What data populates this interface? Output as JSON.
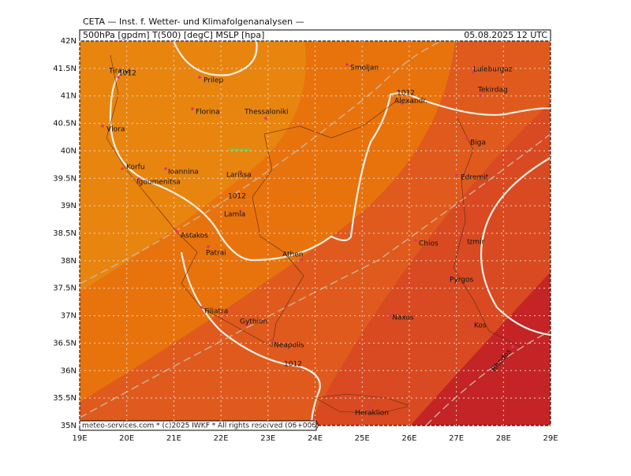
{
  "header": {
    "title": "CETA — Inst. f. Wetter- und Klimafolgenanalysen —",
    "params": "500hPa [gpdm] T(500) [degC] MSLP [hpa]",
    "date": "05.08.2025 12 UTC"
  },
  "axes": {
    "lat_ticks": [
      {
        "value": 42,
        "label": "42N"
      },
      {
        "value": 41.5,
        "label": "41.5N"
      },
      {
        "value": 41,
        "label": "41N"
      },
      {
        "value": 40.5,
        "label": "40.5N"
      },
      {
        "value": 40,
        "label": "40N"
      },
      {
        "value": 39.5,
        "label": "39.5N"
      },
      {
        "value": 39,
        "label": "39N"
      },
      {
        "value": 38.5,
        "label": "38.5N"
      },
      {
        "value": 38,
        "label": "38N"
      },
      {
        "value": 37.5,
        "label": "37.5N"
      },
      {
        "value": 37,
        "label": "37N"
      },
      {
        "value": 36.5,
        "label": "36.5N"
      },
      {
        "value": 36,
        "label": "36N"
      },
      {
        "value": 35.5,
        "label": "35.5N"
      },
      {
        "value": 35,
        "label": "35N"
      }
    ],
    "lon_ticks": [
      {
        "value": 19,
        "label": "19E"
      },
      {
        "value": 20,
        "label": "20E"
      },
      {
        "value": 21,
        "label": "21E"
      },
      {
        "value": 22,
        "label": "22E"
      },
      {
        "value": 23,
        "label": "23E"
      },
      {
        "value": 24,
        "label": "24E"
      },
      {
        "value": 25,
        "label": "25E"
      },
      {
        "value": 26,
        "label": "26E"
      },
      {
        "value": 27,
        "label": "27E"
      },
      {
        "value": 28,
        "label": "28E"
      },
      {
        "value": 29,
        "label": "29E"
      }
    ]
  },
  "cities": [
    "Tirana",
    "Prilep",
    "Smoljan",
    "Luleburgaz",
    "Tekirdag",
    "Alexandr.",
    "Thessaloniki",
    "Florina",
    "Vlora",
    "Biga",
    "Korfu",
    "Ioannina",
    "Igoumenitsa",
    "Larissa",
    "Edremit",
    "Lamia",
    "Astakos",
    "Chios",
    "Izmir",
    "Patrai",
    "Athen",
    "Pyrgos",
    "Filiatra",
    "Gythion",
    "Naxos",
    "Kos",
    "Neapolis",
    "Rhodos",
    "Heraklion"
  ],
  "isobar_labels": [
    "1012",
    "1012",
    "1012",
    "1012"
  ],
  "footer": "meteo-services.com * (c)2025 IWKF * All rights reserved (06+006)"
}
